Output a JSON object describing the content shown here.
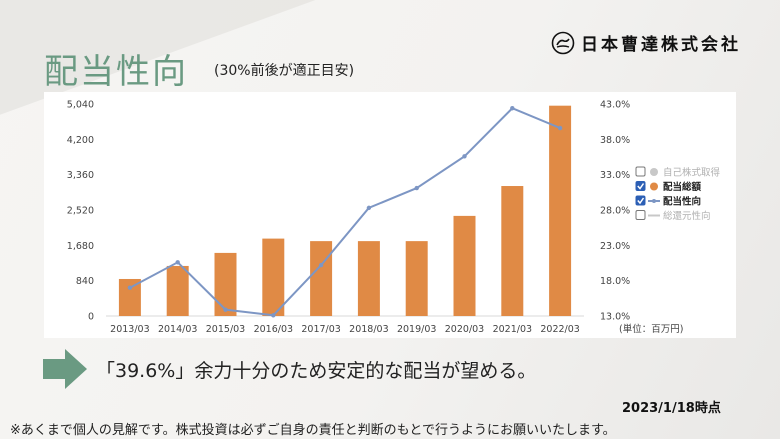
{
  "page": {
    "title": "配当性向",
    "subtitle": "(30%前後が適正目安)",
    "company": "日本曹達株式会社",
    "comment": "「39.6%」余力十分のため安定的な配当が望める。",
    "as_of": "2023/1/18時点",
    "disclaimer": "※あくまで個人の見解です。株式投資は必ずご自身の責任と判断のもとで行うようにお願いいたします。"
  },
  "colors": {
    "bar": "#e08a45",
    "line": "#7d96c4",
    "title": "#6a9a82",
    "arrow": "#6a9a82"
  },
  "chart_data": {
    "type": "bar",
    "categories": [
      "2013/03",
      "2014/03",
      "2015/03",
      "2016/03",
      "2017/03",
      "2018/03",
      "2019/03",
      "2020/03",
      "2021/03",
      "2022/03"
    ],
    "series": [
      {
        "name": "配当総額",
        "type": "bar",
        "axis": "left",
        "values": [
          880,
          1190,
          1500,
          1840,
          1780,
          1780,
          1780,
          2380,
          3090,
          5000
        ]
      },
      {
        "name": "配当性向",
        "type": "line",
        "axis": "right",
        "values": [
          17.0,
          20.6,
          13.9,
          13.1,
          20.2,
          28.3,
          31.1,
          35.6,
          42.4,
          39.6
        ]
      }
    ],
    "y_left": {
      "ticks": [
        "5,040",
        "4,200",
        "3,360",
        "2,520",
        "1,680",
        "840",
        "0"
      ],
      "ylim": [
        0,
        5040
      ]
    },
    "y_right": {
      "ticks": [
        "43.0%",
        "38.0%",
        "33.0%",
        "28.0%",
        "23.0%",
        "18.0%",
        "13.0%"
      ],
      "ylim": [
        13.0,
        43.0
      ]
    },
    "unit_label": "(単位：百万円)",
    "legend": [
      {
        "label": "自己株式取得",
        "checked": false,
        "active": false
      },
      {
        "label": "配当総額",
        "checked": true,
        "active": true
      },
      {
        "label": "配当性向",
        "checked": true,
        "active": true
      },
      {
        "label": "総還元性向",
        "checked": false,
        "active": false
      }
    ],
    "legend_position": "right",
    "grid": false
  }
}
